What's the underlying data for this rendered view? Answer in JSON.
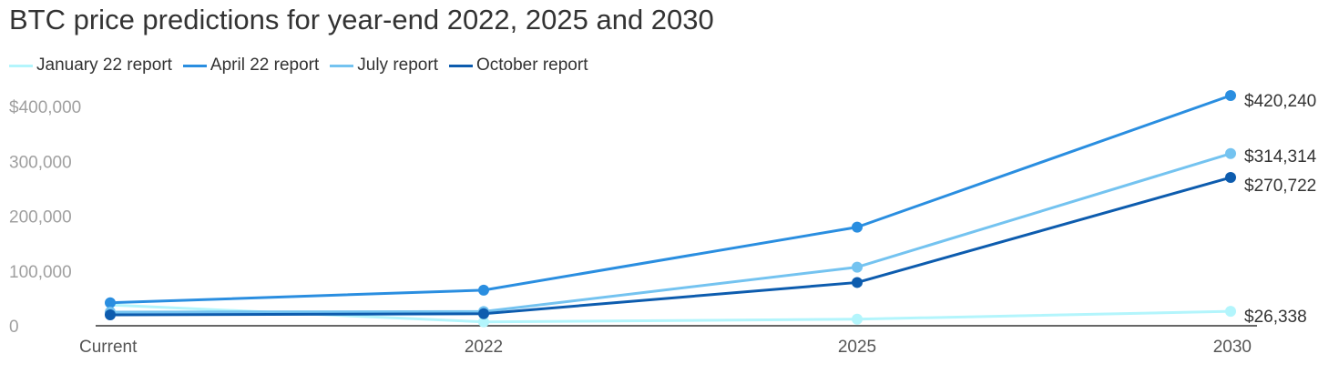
{
  "chart_data": {
    "type": "line",
    "title": "BTC price predictions for year-end 2022, 2025 and 2030",
    "categories": [
      "Current",
      "2022",
      "2025",
      "2030"
    ],
    "y_ticks": [
      "$400,000",
      "300,000",
      "200,000",
      "100,000",
      "0"
    ],
    "ylim": [
      0,
      420240
    ],
    "grid": false,
    "legend_position": "top-left",
    "series": [
      {
        "name": "January 22 report",
        "color": "#b3f5fc",
        "values": [
          38000,
          7000,
          12000,
          26338
        ],
        "end_label": "$26,338"
      },
      {
        "name": "April 22 report",
        "color": "#2a8ee0",
        "values": [
          42000,
          65000,
          180000,
          420240
        ],
        "end_label": "$420,240"
      },
      {
        "name": "July report",
        "color": "#74c3f0",
        "values": [
          25000,
          26000,
          107000,
          314314
        ],
        "end_label": "$314,314"
      },
      {
        "name": "October report",
        "color": "#0d5cae",
        "values": [
          20000,
          22000,
          79000,
          270722
        ],
        "end_label": "$270,722"
      }
    ]
  }
}
